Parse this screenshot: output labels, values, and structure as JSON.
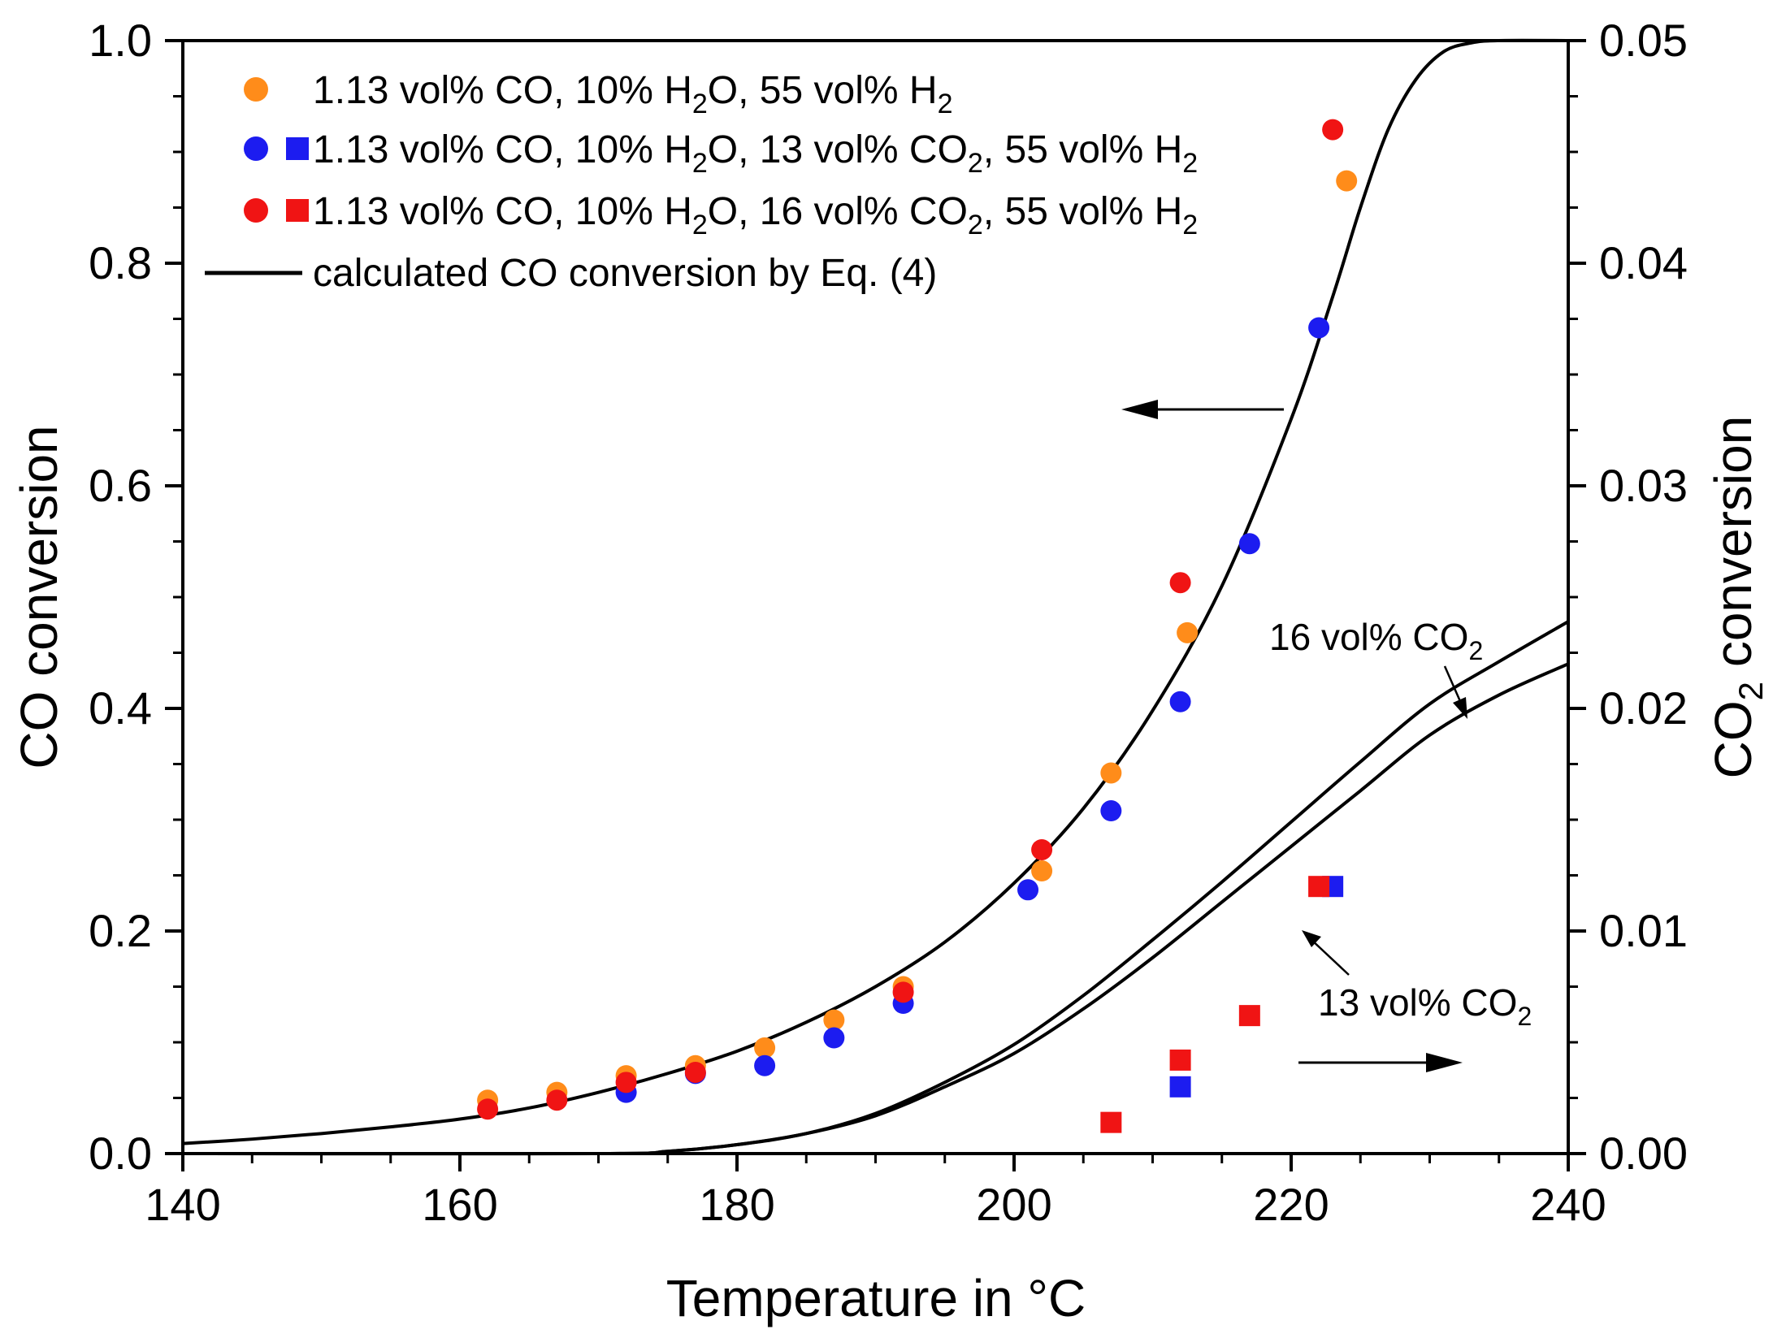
{
  "chart_data": {
    "type": "scatter",
    "xlabel": "Temperature in °C",
    "ylabel": "CO conversion",
    "y2label_main": "CO",
    "y2label_sub": "2",
    "y2label_rest": " conversion",
    "xlim": [
      140,
      240
    ],
    "ylim": [
      0,
      1.0
    ],
    "y2lim": [
      0,
      0.05
    ],
    "x_ticks": [
      "140",
      "160",
      "180",
      "200",
      "220",
      "240"
    ],
    "y_ticks": [
      "0.0",
      "0.2",
      "0.4",
      "0.6",
      "0.8",
      "1.0"
    ],
    "y2_ticks": [
      "0.00",
      "0.01",
      "0.02",
      "0.03",
      "0.04",
      "0.05"
    ],
    "colors": {
      "orange": "#ff8c1a",
      "blue": "#1c1cf0",
      "red": "#f01414",
      "black": "#000000"
    },
    "legend": [
      {
        "text": "1.13 vol% CO, 10% H",
        "sub": "2",
        "text2": "O, 55 vol% H",
        "sub2": "2",
        "text3": "",
        "sub3": "",
        "text4": "",
        "sub4": ""
      },
      {
        "text": "1.13 vol% CO, 10% H",
        "sub": "2",
        "text2": "O, 13 vol% CO",
        "sub2": "2",
        "text3": ", 55 vol% H",
        "sub3": "2",
        "text4": "",
        "sub4": ""
      },
      {
        "text": "1.13 vol% CO, 10% H",
        "sub": "2",
        "text2": "O, 16 vol% CO",
        "sub2": "2",
        "text3": ", 55 vol% H",
        "sub3": "2",
        "text4": "",
        "sub4": ""
      },
      {
        "text": "calculated CO conversion by Eq. (4)"
      }
    ],
    "annotations": {
      "co2_16": {
        "text": "16 vol% CO",
        "sub": "2"
      },
      "co2_13": {
        "text": "13 vol% CO",
        "sub": "2"
      }
    },
    "series": [
      {
        "name": "1.13 vol% CO, 10% H2O, 55 vol% H2",
        "axis": "left",
        "marker": "circle",
        "color": "orange",
        "x": [
          162,
          167,
          172,
          177,
          182,
          187,
          192,
          202,
          207,
          212.5,
          224
        ],
        "y": [
          0.048,
          0.055,
          0.07,
          0.079,
          0.095,
          0.12,
          0.15,
          0.254,
          0.342,
          0.468,
          0.874
        ]
      },
      {
        "name": "1.13 vol% CO, 10% H2O, 13 vol% CO2, 55 vol% H2 (CO)",
        "axis": "left",
        "marker": "circle",
        "color": "blue",
        "x": [
          172,
          177,
          182,
          187,
          192,
          201,
          207,
          212,
          217,
          222
        ],
        "y": [
          0.055,
          0.072,
          0.079,
          0.104,
          0.135,
          0.237,
          0.308,
          0.406,
          0.548,
          0.742
        ]
      },
      {
        "name": "1.13 vol% CO, 10% H2O, 16 vol% CO2, 55 vol% H2 (CO)",
        "axis": "left",
        "marker": "circle",
        "color": "red",
        "x": [
          162,
          167,
          172,
          177,
          192,
          202,
          212,
          223
        ],
        "y": [
          0.04,
          0.048,
          0.064,
          0.073,
          0.145,
          0.273,
          0.513,
          0.92
        ]
      },
      {
        "name": "1.13 vol% CO, 10% H2O, 13 vol% CO2, 55 vol% H2 (CO2)",
        "axis": "right",
        "marker": "square",
        "color": "blue",
        "x": [
          212,
          223
        ],
        "y": [
          0.003,
          0.012
        ]
      },
      {
        "name": "1.13 vol% CO, 10% H2O, 16 vol% CO2, 55 vol% H2 (CO2)",
        "axis": "right",
        "marker": "square",
        "color": "red",
        "x": [
          207,
          212,
          217,
          222
        ],
        "y": [
          0.0014,
          0.0042,
          0.0062,
          0.012
        ]
      },
      {
        "name": "calculated CO conversion by Eq. (4)",
        "axis": "left",
        "marker": "line",
        "color": "black",
        "x": [
          140,
          145,
          150,
          155,
          160,
          165,
          170,
          175,
          180,
          185,
          190,
          195,
          200,
          205,
          210,
          215,
          220,
          223,
          225,
          227,
          229,
          231,
          233,
          235,
          240
        ],
        "y": [
          0.009,
          0.013,
          0.018,
          0.024,
          0.031,
          0.041,
          0.055,
          0.072,
          0.092,
          0.118,
          0.15,
          0.19,
          0.243,
          0.31,
          0.398,
          0.51,
          0.66,
          0.77,
          0.85,
          0.92,
          0.965,
          0.99,
          0.998,
          1.0,
          1.0
        ]
      },
      {
        "name": "calculated CO2 conversion, 16 vol% CO2",
        "axis": "right",
        "marker": "line",
        "color": "black",
        "x": [
          140,
          170,
          175,
          180,
          185,
          190,
          195,
          200,
          205,
          210,
          215,
          220,
          225,
          230,
          235,
          240
        ],
        "y": [
          0.0,
          0.0,
          0.0001,
          0.0004,
          0.0009,
          0.0018,
          0.0032,
          0.0049,
          0.0071,
          0.0096,
          0.0122,
          0.0149,
          0.0176,
          0.0202,
          0.0221,
          0.0239
        ]
      },
      {
        "name": "calculated CO2 conversion, 13 vol% CO2",
        "axis": "right",
        "marker": "line",
        "color": "black",
        "x": [
          140,
          170,
          175,
          180,
          185,
          190,
          195,
          200,
          205,
          210,
          215,
          220,
          225,
          230,
          235,
          240
        ],
        "y": [
          0.0,
          0.0,
          0.0001,
          0.0004,
          0.0009,
          0.0017,
          0.003,
          0.0045,
          0.0065,
          0.0088,
          0.0113,
          0.0138,
          0.0163,
          0.0188,
          0.0206,
          0.022
        ]
      }
    ]
  }
}
